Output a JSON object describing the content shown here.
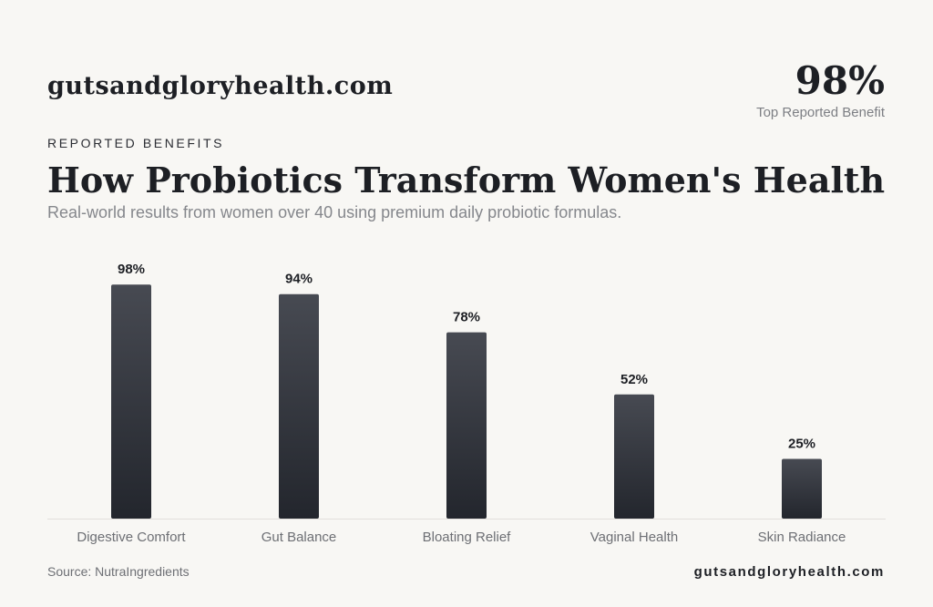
{
  "brand": "gutsandgloryhealth.com",
  "kpi": {
    "value": "98%",
    "label": "Top Reported Benefit"
  },
  "eyebrow": "REPORTED BENEFITS",
  "chart_data": {
    "type": "bar",
    "title": "How Probiotics Transform Women's Health",
    "subtitle": "Real-world results from women over 40 using premium daily probiotic formulas.",
    "categories": [
      "Digestive Comfort",
      "Gut Balance",
      "Bloating Relief",
      "Vaginal Health",
      "Skin Radiance"
    ],
    "values": [
      98,
      94,
      78,
      52,
      25
    ],
    "value_labels": [
      "98%",
      "94%",
      "78%",
      "52%",
      "25%"
    ],
    "color": "#2f3239"
  },
  "footer": {
    "source": "Source: NutraIngredients",
    "brand": "gutsandgloryhealth.com"
  }
}
